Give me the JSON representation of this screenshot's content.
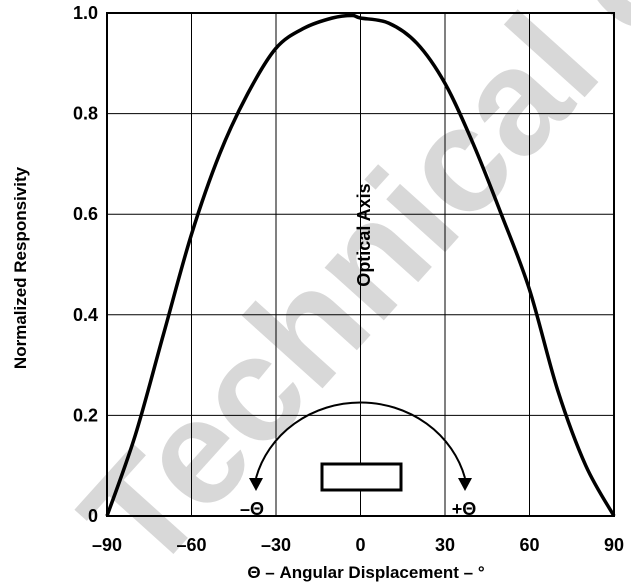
{
  "chart_data": {
    "type": "line",
    "xlabel": "Θ – Angular Displacement – °",
    "ylabel": "Normalized Responsivity",
    "xlim": [
      -90,
      90
    ],
    "ylim": [
      0,
      1.0
    ],
    "x_ticks": [
      "–90",
      "–60",
      "–30",
      "0",
      "30",
      "60",
      "90"
    ],
    "y_ticks": [
      "0",
      "0.2",
      "0.4",
      "0.6",
      "0.8",
      "1.0"
    ],
    "grid": true,
    "series": [
      {
        "x": [
          -90,
          -80,
          -70,
          -60,
          -50,
          -40,
          -30,
          -20,
          -10,
          -3,
          0,
          10,
          20,
          30,
          40,
          50,
          60,
          70,
          80,
          90
        ],
        "values": [
          0.0,
          0.16,
          0.36,
          0.56,
          0.72,
          0.84,
          0.93,
          0.97,
          0.99,
          0.995,
          0.99,
          0.98,
          0.94,
          0.86,
          0.74,
          0.6,
          0.45,
          0.25,
          0.1,
          0.0
        ]
      }
    ],
    "annotations": {
      "optical_axis": "Optical Axis",
      "minus_theta": "–Θ",
      "plus_theta": "+Θ"
    }
  },
  "watermark": "Technical da"
}
